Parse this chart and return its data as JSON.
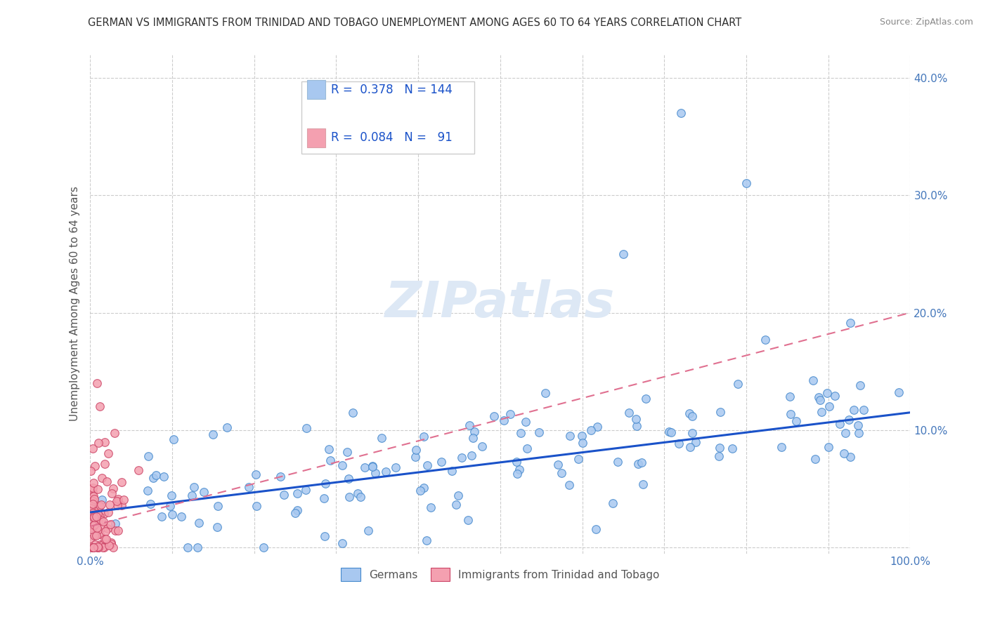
{
  "title": "GERMAN VS IMMIGRANTS FROM TRINIDAD AND TOBAGO UNEMPLOYMENT AMONG AGES 60 TO 64 YEARS CORRELATION CHART",
  "source": "Source: ZipAtlas.com",
  "ylabel": "Unemployment Among Ages 60 to 64 years",
  "xlim": [
    0.0,
    1.0
  ],
  "ylim": [
    -0.005,
    0.42
  ],
  "x_ticks": [
    0.0,
    0.1,
    0.2,
    0.3,
    0.4,
    0.5,
    0.6,
    0.7,
    0.8,
    0.9,
    1.0
  ],
  "x_tick_labels": [
    "0.0%",
    "",
    "",
    "",
    "",
    "",
    "",
    "",
    "",
    "",
    "100.0%"
  ],
  "y_ticks": [
    0.0,
    0.1,
    0.2,
    0.3,
    0.4
  ],
  "y_tick_labels": [
    "",
    "10.0%",
    "20.0%",
    "30.0%",
    "40.0%"
  ],
  "watermark": "ZIPatlas",
  "legend_blue_R": "0.378",
  "legend_blue_N": "144",
  "legend_pink_R": "0.084",
  "legend_pink_N": "91",
  "blue_color": "#a8c8f0",
  "pink_color": "#f4a0b0",
  "blue_line_color": "#1a52c9",
  "pink_line_color": "#e07090",
  "blue_scatter_edge": "#4488cc",
  "pink_scatter_edge": "#cc4466",
  "grid_color": "#cccccc",
  "background_color": "#ffffff",
  "title_color": "#303030",
  "source_color": "#888888",
  "seed": 99
}
